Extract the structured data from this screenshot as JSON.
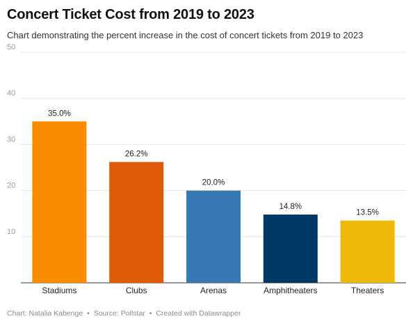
{
  "title": "Concert Ticket Cost from 2019 to 2023",
  "subtitle": "Chart demonstrating the percent increase in the cost of concert tickets from 2019 to 2023",
  "footer": {
    "chart_by": "Chart: Natalia Kabenge",
    "source": "Source: Pollstar",
    "created_with": "Created with Datawrapper",
    "separator": "•"
  },
  "chart_data": {
    "type": "bar",
    "title": "Concert Ticket Cost from 2019 to 2023",
    "subtitle": "Chart demonstrating the percent increase in the cost of concert tickets from 2019 to 2023",
    "xlabel": "",
    "ylabel": "",
    "ylim": [
      0,
      50
    ],
    "yticks": [
      10,
      20,
      30,
      40,
      50
    ],
    "grid": true,
    "categories": [
      "Stadiums",
      "Clubs",
      "Arenas",
      "Amphitheaters",
      "Theaters"
    ],
    "values": [
      35.0,
      26.2,
      20.0,
      14.8,
      13.5
    ],
    "value_labels": [
      "35.0%",
      "26.2%",
      "20.0%",
      "14.8%",
      "13.5%"
    ],
    "colors": [
      "#f98c00",
      "#df5b07",
      "#3679b4",
      "#003765",
      "#f0b809"
    ]
  }
}
